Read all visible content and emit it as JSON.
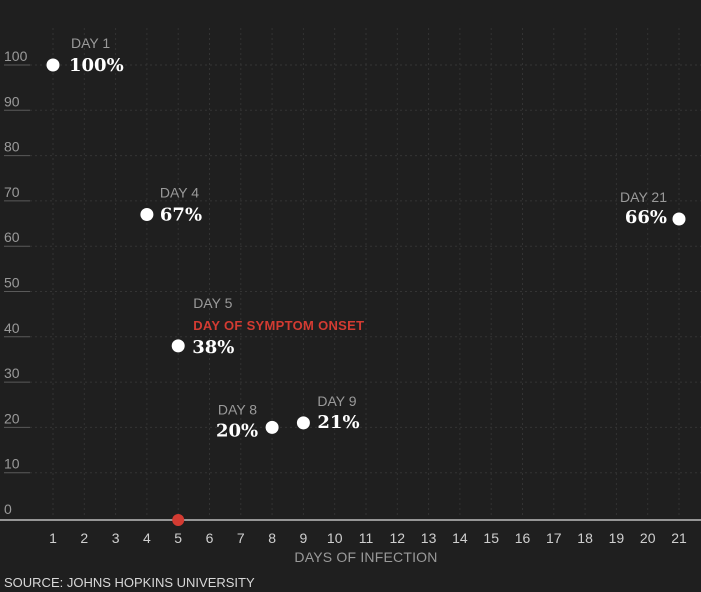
{
  "chart_data": {
    "type": "scatter",
    "title": "",
    "xlabel": "DAYS OF INFECTION",
    "ylabel": "",
    "xlim": [
      1,
      21
    ],
    "ylim": [
      0,
      100
    ],
    "x_ticks": [
      1,
      2,
      3,
      4,
      5,
      6,
      7,
      8,
      9,
      10,
      11,
      12,
      13,
      14,
      15,
      16,
      17,
      18,
      19,
      20,
      21
    ],
    "y_ticks": [
      0,
      10,
      20,
      30,
      40,
      50,
      60,
      70,
      80,
      90,
      100
    ],
    "grid": true,
    "points": [
      {
        "day": 1,
        "value": 100,
        "day_label": "DAY 1",
        "value_label": "100%"
      },
      {
        "day": 4,
        "value": 67,
        "day_label": "DAY 4",
        "value_label": "67%"
      },
      {
        "day": 5,
        "value": 38,
        "day_label": "DAY 5",
        "value_label": "38%",
        "annotation": "DAY OF SYMPTOM ONSET"
      },
      {
        "day": 8,
        "value": 20,
        "day_label": "DAY 8",
        "value_label": "20%"
      },
      {
        "day": 9,
        "value": 21,
        "day_label": "DAY 9",
        "value_label": "21%"
      },
      {
        "day": 21,
        "value": 66,
        "day_label": "DAY 21",
        "value_label": "66%"
      }
    ],
    "axis_marker": {
      "day": 5
    },
    "colors": {
      "background": "#1f1f1f",
      "point": "#ffffff",
      "highlight": "#d33b32"
    }
  },
  "source": "SOURCE: JOHNS HOPKINS UNIVERSITY"
}
